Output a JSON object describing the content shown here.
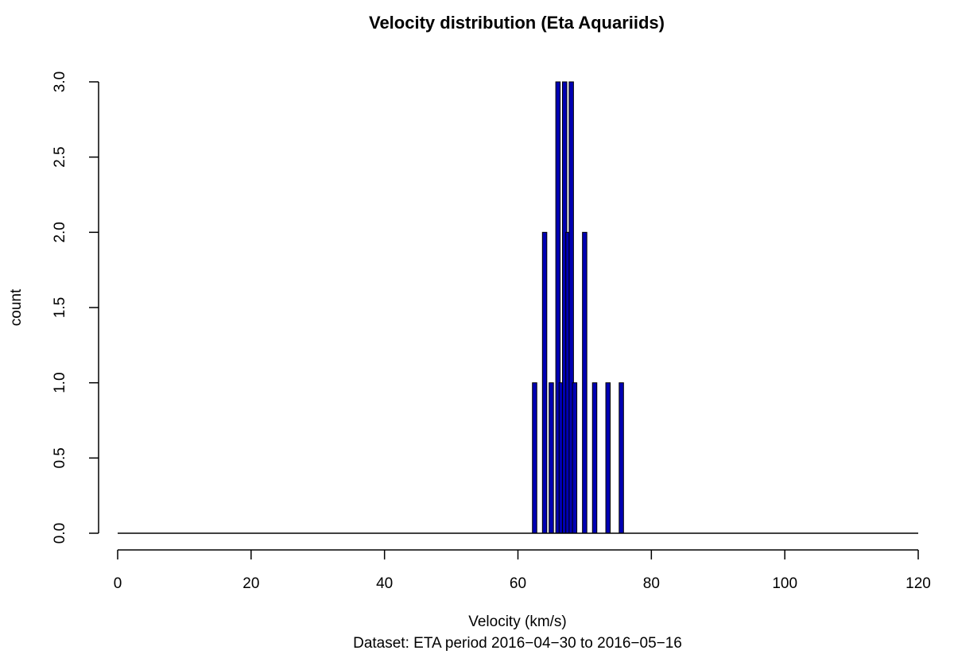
{
  "chart_data": {
    "type": "bar",
    "title": "Velocity distribution (Eta Aquariids)",
    "xlabel": "Velocity (km/s)",
    "ylabel": "count",
    "subtitle": "Dataset: ETA period 2016−04−30 to 2016−05−16",
    "xlim": [
      0,
      120
    ],
    "ylim": [
      0,
      3
    ],
    "x_ticks": [
      "0",
      "20",
      "40",
      "60",
      "80",
      "100",
      "120"
    ],
    "y_ticks": [
      "0.0",
      "0.5",
      "1.0",
      "1.5",
      "2.0",
      "2.5",
      "3.0"
    ],
    "grid": false,
    "legend": "none",
    "bar_color": "#0000b3",
    "bar_outline_color": "#000000",
    "series": [
      {
        "x": [
          62.5,
          64.0,
          65.0,
          66.0,
          66.5,
          67.0,
          67.5,
          68.0,
          68.5,
          70.0,
          71.5,
          73.5,
          75.5
        ],
        "values": [
          1,
          2,
          1,
          3,
          1,
          3,
          2,
          3,
          1,
          2,
          1,
          1,
          1
        ]
      }
    ]
  }
}
